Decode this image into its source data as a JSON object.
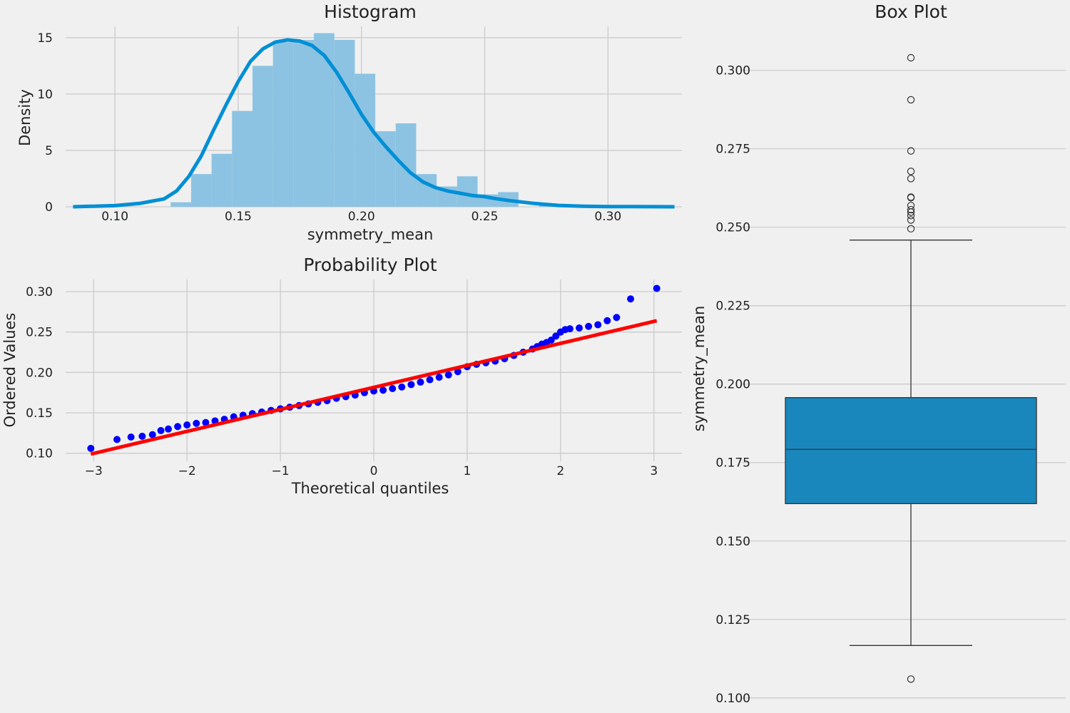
{
  "chart_data": [
    {
      "type": "bar",
      "title": "Histogram",
      "xlabel": "symmetry_mean",
      "ylabel": "Density",
      "xlim": [
        0.08,
        0.33
      ],
      "ylim": [
        0,
        16
      ],
      "xticks": [
        "0.10",
        "0.15",
        "0.20",
        "0.25",
        "0.30"
      ],
      "yticks": [
        "0",
        "5",
        "10",
        "15"
      ],
      "grid": true,
      "colors": {
        "bars": "#8cc3e2",
        "kde": "#008fd5"
      },
      "bins": [
        {
          "x0": 0.106,
          "x1": 0.1143,
          "density": 0.0
        },
        {
          "x0": 0.1143,
          "x1": 0.1226,
          "density": 0.0
        },
        {
          "x0": 0.1226,
          "x1": 0.1309,
          "density": 0.4
        },
        {
          "x0": 0.1309,
          "x1": 0.1392,
          "density": 2.9
        },
        {
          "x0": 0.1392,
          "x1": 0.1475,
          "density": 4.7
        },
        {
          "x0": 0.1475,
          "x1": 0.1558,
          "density": 8.5
        },
        {
          "x0": 0.1558,
          "x1": 0.1641,
          "density": 12.5
        },
        {
          "x0": 0.1641,
          "x1": 0.1724,
          "density": 14.6
        },
        {
          "x0": 0.1724,
          "x1": 0.1807,
          "density": 14.8
        },
        {
          "x0": 0.1807,
          "x1": 0.189,
          "density": 15.4
        },
        {
          "x0": 0.189,
          "x1": 0.1973,
          "density": 14.8
        },
        {
          "x0": 0.1973,
          "x1": 0.2056,
          "density": 11.8
        },
        {
          "x0": 0.2056,
          "x1": 0.2139,
          "density": 6.7
        },
        {
          "x0": 0.2139,
          "x1": 0.2222,
          "density": 7.4
        },
        {
          "x0": 0.2222,
          "x1": 0.2305,
          "density": 2.9
        },
        {
          "x0": 0.2305,
          "x1": 0.2388,
          "density": 1.8
        },
        {
          "x0": 0.2388,
          "x1": 0.2471,
          "density": 2.7
        },
        {
          "x0": 0.2471,
          "x1": 0.2554,
          "density": 1.1
        },
        {
          "x0": 0.2554,
          "x1": 0.2637,
          "density": 1.3
        },
        {
          "x0": 0.2637,
          "x1": 0.272,
          "density": 0.0
        },
        {
          "x0": 0.272,
          "x1": 0.2803,
          "density": 0.2
        },
        {
          "x0": 0.2803,
          "x1": 0.2886,
          "density": 0.0
        },
        {
          "x0": 0.2886,
          "x1": 0.2969,
          "density": 0.1
        },
        {
          "x0": 0.2969,
          "x1": 0.3052,
          "density": 0.1
        }
      ],
      "kde": {
        "x": [
          0.083,
          0.1,
          0.11,
          0.12,
          0.125,
          0.13,
          0.135,
          0.14,
          0.145,
          0.15,
          0.155,
          0.16,
          0.165,
          0.17,
          0.175,
          0.18,
          0.185,
          0.19,
          0.195,
          0.2,
          0.205,
          0.21,
          0.215,
          0.22,
          0.225,
          0.23,
          0.235,
          0.24,
          0.245,
          0.25,
          0.255,
          0.26,
          0.27,
          0.28,
          0.29,
          0.3,
          0.31,
          0.327
        ],
        "y": [
          0.0,
          0.1,
          0.3,
          0.7,
          1.4,
          2.7,
          4.5,
          6.8,
          9.0,
          11.1,
          12.9,
          14.0,
          14.6,
          14.8,
          14.7,
          14.3,
          13.4,
          11.9,
          10.1,
          8.2,
          6.6,
          5.3,
          4.1,
          3.0,
          2.2,
          1.7,
          1.4,
          1.2,
          1.0,
          0.9,
          0.7,
          0.55,
          0.3,
          0.12,
          0.05,
          0.02,
          0.01,
          0.0
        ]
      }
    },
    {
      "type": "scatter",
      "title": "Probability Plot",
      "xlabel": "Theoretical quantiles",
      "ylabel": "Ordered Values",
      "xlim": [
        -3.3,
        3.3
      ],
      "ylim": [
        0.09,
        0.315
      ],
      "xticks": [
        "−3",
        "−2",
        "−1",
        "0",
        "1",
        "2",
        "3"
      ],
      "yticks": [
        "0.10",
        "0.15",
        "0.20",
        "0.25",
        "0.30"
      ],
      "grid": true,
      "colors": {
        "points": "#0000ff",
        "fit": "#ff0000"
      },
      "points": {
        "x": [
          -3.03,
          -2.75,
          -2.6,
          -2.48,
          -2.37,
          -2.28,
          -2.2,
          -2.1,
          -2.0,
          -1.9,
          -1.8,
          -1.7,
          -1.6,
          -1.5,
          -1.4,
          -1.3,
          -1.2,
          -1.1,
          -1.0,
          -0.9,
          -0.8,
          -0.7,
          -0.6,
          -0.5,
          -0.4,
          -0.3,
          -0.2,
          -0.1,
          0.0,
          0.1,
          0.2,
          0.3,
          0.4,
          0.5,
          0.6,
          0.7,
          0.8,
          0.9,
          1.0,
          1.1,
          1.2,
          1.3,
          1.4,
          1.5,
          1.6,
          1.7,
          1.75,
          1.8,
          1.85,
          1.9,
          1.95,
          2.0,
          2.05,
          2.1,
          2.2,
          2.3,
          2.4,
          2.5,
          2.6,
          2.75,
          3.03
        ],
        "y": [
          0.106,
          0.117,
          0.12,
          0.121,
          0.123,
          0.128,
          0.13,
          0.133,
          0.135,
          0.137,
          0.138,
          0.14,
          0.142,
          0.145,
          0.147,
          0.149,
          0.151,
          0.153,
          0.155,
          0.157,
          0.159,
          0.161,
          0.163,
          0.165,
          0.168,
          0.17,
          0.172,
          0.175,
          0.177,
          0.178,
          0.18,
          0.182,
          0.185,
          0.188,
          0.191,
          0.194,
          0.197,
          0.201,
          0.207,
          0.21,
          0.212,
          0.214,
          0.217,
          0.221,
          0.225,
          0.229,
          0.232,
          0.235,
          0.237,
          0.24,
          0.245,
          0.25,
          0.253,
          0.254,
          0.255,
          0.257,
          0.259,
          0.264,
          0.268,
          0.291,
          0.304
        ]
      },
      "fit": {
        "x": [
          -3.03,
          3.03
        ],
        "y": [
          0.099,
          0.264
        ]
      }
    },
    {
      "type": "box",
      "title": "Box Plot",
      "xlabel": "",
      "ylabel": "symmetry_mean",
      "ylim": [
        0.097,
        0.314
      ],
      "yticks": [
        "0.100",
        "0.125",
        "0.150",
        "0.175",
        "0.200",
        "0.225",
        "0.250",
        "0.275",
        "0.300"
      ],
      "grid": true,
      "colors": {
        "box": "#1a87bc",
        "edge": "#333333"
      },
      "whisker_low": 0.1167,
      "q1": 0.1619,
      "median": 0.1792,
      "q3": 0.1957,
      "whisker_high": 0.2459,
      "outliers": [
        0.106,
        0.2495,
        0.2523,
        0.2537,
        0.2548,
        0.2556,
        0.2569,
        0.2594,
        0.2596,
        0.2655,
        0.2678,
        0.2743,
        0.2906,
        0.304
      ]
    }
  ]
}
